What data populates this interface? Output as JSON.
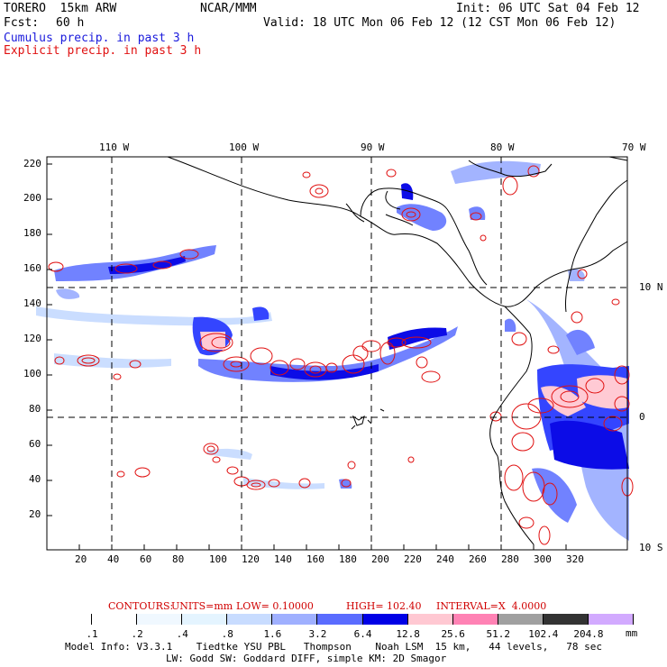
{
  "header": {
    "model": "TORERO  15km ARW",
    "center": "NCAR/MMM",
    "init": "Init: 06 UTC Sat 04 Feb 12",
    "fcst_label": "Fcst:",
    "fcst_value": "60 h",
    "valid": "Valid: 18 UTC Mon 06 Feb 12 (12 CST Mon 06 Feb 12)",
    "cumulus_label": "Cumulus precip. in past 3 h",
    "explicit_label": "Explicit precip. in past 3 h"
  },
  "colors": {
    "cumulus": "#1a1adc",
    "explicit": "#e01010",
    "contours_text": "#d00000"
  },
  "map": {
    "top_lon_labels": [
      "110 W",
      "100 W",
      "90 W",
      "80 W",
      "70 W"
    ],
    "right_lat_labels": [
      "10 N",
      "0",
      "10 S"
    ],
    "y_ticks": [
      "220",
      "200",
      "180",
      "160",
      "140",
      "120",
      "100",
      "80",
      "60",
      "40",
      "20"
    ],
    "x_ticks": [
      "20",
      "40",
      "60",
      "80",
      "100",
      "120",
      "140",
      "160",
      "180",
      "200",
      "220",
      "240",
      "260",
      "280",
      "300",
      "320"
    ]
  },
  "contours": {
    "prefix": "CONTOURS:",
    "units": "UNITS=mm",
    "low": "LOW= 0.10000",
    "high": "HIGH= 102.40",
    "interval": "INTERVAL=X  4.0000"
  },
  "colorbar": {
    "labels": [
      ".1",
      ".2",
      ".4",
      ".8",
      "1.6",
      "3.2",
      "6.4",
      "12.8",
      "25.6",
      "51.2",
      "102.4",
      "204.8"
    ],
    "unit": "mm",
    "colors": [
      "#ffffff",
      "#ffffff",
      "#f0f8ff",
      "#e4f4ff",
      "#c8dcff",
      "#9fb0ff",
      "#5a6cff",
      "#0000e6",
      "#ffc8d2",
      "#ff82b4",
      "#a0a0a0",
      "#333333",
      "#d2aaff"
    ]
  },
  "footer": {
    "line1": "Model Info: V3.3.1    Tiedtke YSU PBL   Thompson    Noah LSM  15 km,   44 levels,   78 sec",
    "line2": "LW: Godd SW: Goddard DIFF, simple KM: 2D Smagor"
  }
}
